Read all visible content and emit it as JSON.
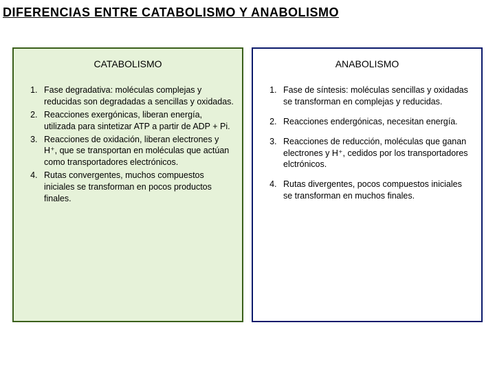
{
  "title": "DIFERENCIAS ENTRE CATABOLISMO Y ANABOLISMO",
  "left": {
    "heading": "CATABOLISMO",
    "bg_color": "#e6f2d9",
    "border_color": "#3a5f1a",
    "items": [
      "Fase degradativa: moléculas complejas y reducidas son degradadas a sencillas y oxidadas.",
      "Reacciones exergónicas, liberan energía, utilizada para sintetizar ATP a partir de ADP + Pi.",
      "Reacciones de oxidación, liberan electrones y H⁺, que se transportan en moléculas que actúan como transportadores electrónicos.",
      "Rutas convergentes, muchos compuestos iniciales se transforman en pocos productos finales."
    ]
  },
  "right": {
    "heading": "ANABOLISMO",
    "bg_color": "#ffffff",
    "border_color": "#0a1a6b",
    "items": [
      "Fase de síntesis: moléculas sencillas y oxidadas se transforman en complejas y reducidas.",
      "Reacciones endergónicas, necesitan energía.",
      "Reacciones de reducción, moléculas que ganan electrones y H⁺, cedidos por los transportadores elctrónicos.",
      "Rutas divergentes, pocos compuestos iniciales se transforman en muchos finales."
    ]
  }
}
